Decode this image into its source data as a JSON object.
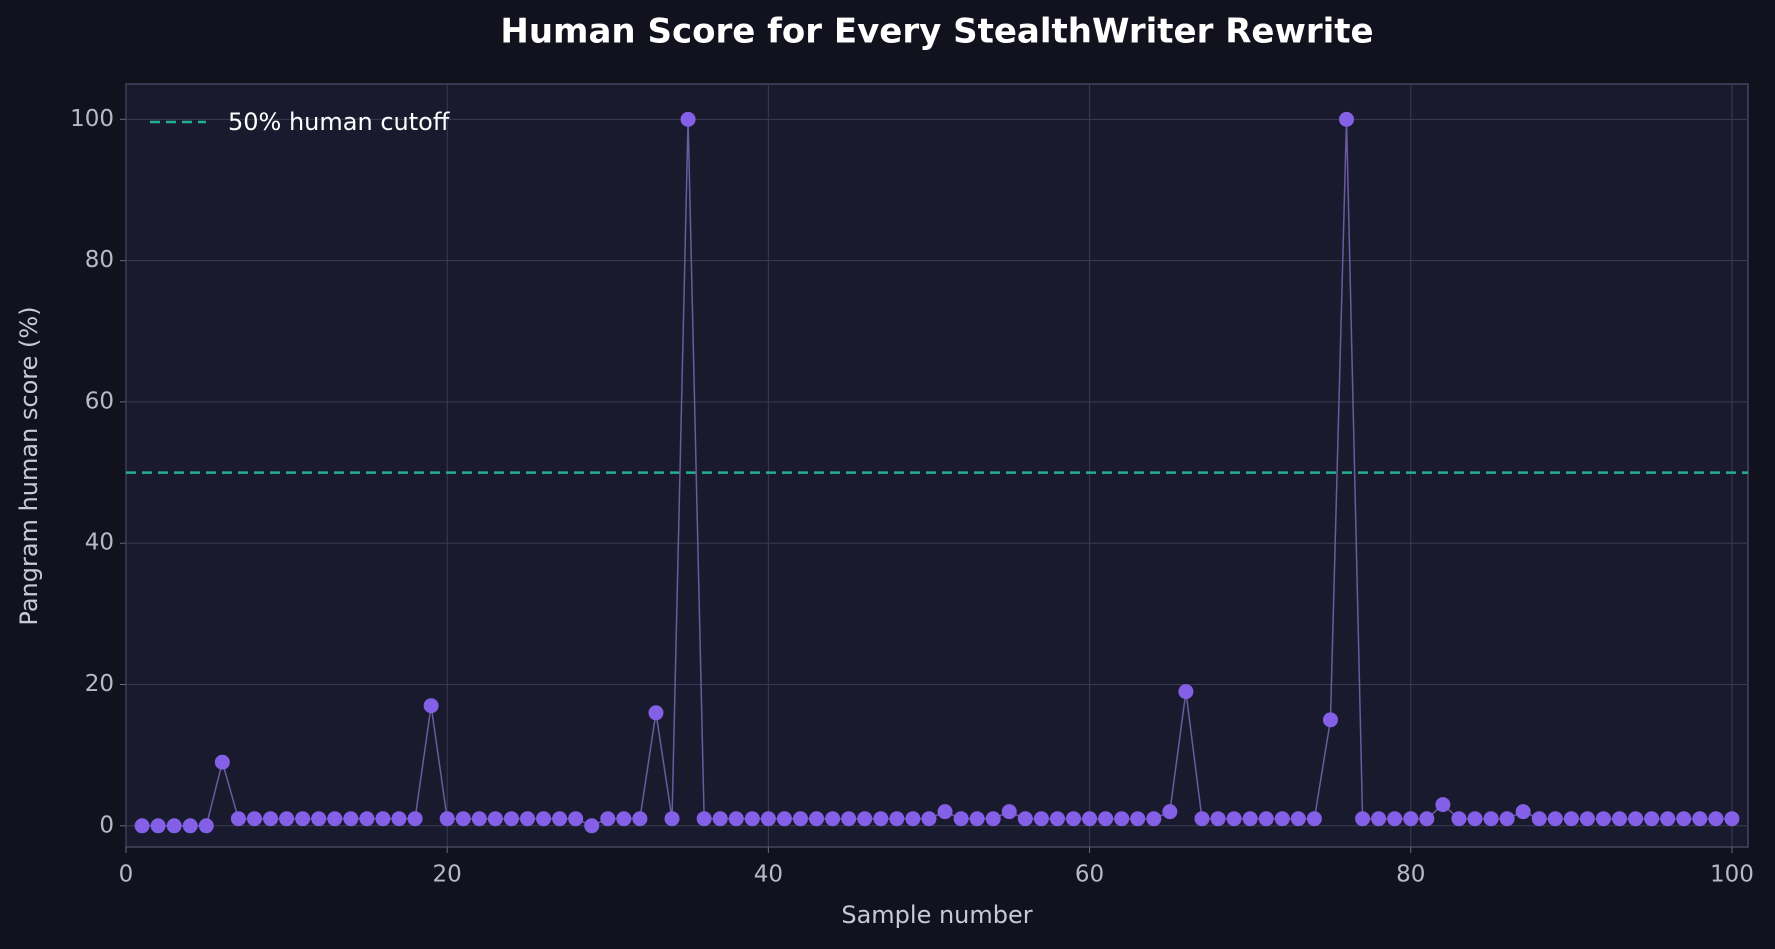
{
  "chart_data": {
    "type": "line",
    "title": "Human Score for Every StealthWriter Rewrite",
    "x_label": "Sample number",
    "y_label": "Pangram human score (%)",
    "x": [
      1,
      2,
      3,
      4,
      5,
      6,
      7,
      8,
      9,
      10,
      11,
      12,
      13,
      14,
      15,
      16,
      17,
      18,
      19,
      20,
      21,
      22,
      23,
      24,
      25,
      26,
      27,
      28,
      29,
      30,
      31,
      32,
      33,
      34,
      35,
      36,
      37,
      38,
      39,
      40,
      41,
      42,
      43,
      44,
      45,
      46,
      47,
      48,
      49,
      50,
      51,
      52,
      53,
      54,
      55,
      56,
      57,
      58,
      59,
      60,
      61,
      62,
      63,
      64,
      65,
      66,
      67,
      68,
      69,
      70,
      71,
      72,
      73,
      74,
      75,
      76,
      77,
      78,
      79,
      80,
      81,
      82,
      83,
      84,
      85,
      86,
      87,
      88,
      89,
      90,
      91,
      92,
      93,
      94,
      95,
      96,
      97,
      98,
      99,
      100
    ],
    "series": [
      {
        "color": "#8360e6",
        "line_color": "#6a5a9e",
        "values": [
          0,
          0,
          0,
          0,
          0,
          9,
          1,
          1,
          1,
          1,
          1,
          1,
          1,
          1,
          1,
          1,
          1,
          1,
          17,
          1,
          1,
          1,
          1,
          1,
          1,
          1,
          1,
          1,
          0,
          1,
          1,
          1,
          16,
          1,
          100,
          1,
          1,
          1,
          1,
          1,
          1,
          1,
          1,
          1,
          1,
          1,
          1,
          1,
          1,
          1,
          2,
          1,
          1,
          1,
          2,
          1,
          1,
          1,
          1,
          1,
          1,
          1,
          1,
          1,
          2,
          19,
          1,
          1,
          1,
          1,
          1,
          1,
          1,
          1,
          15,
          100,
          1,
          1,
          1,
          1,
          1,
          3,
          1,
          1,
          1,
          1,
          2,
          1,
          1,
          1,
          1,
          1,
          1,
          1,
          1,
          1,
          1,
          1,
          1,
          1
        ]
      }
    ],
    "threshold": {
      "value": 50,
      "name": "50% human cutoff",
      "color": "#22b08e"
    },
    "xlim": [
      0,
      101
    ],
    "ylim": [
      -3,
      105
    ],
    "xticks": [
      0,
      20,
      40,
      60,
      80,
      100
    ],
    "yticks": [
      0,
      20,
      40,
      60,
      80,
      100
    ],
    "grid": true,
    "legend": "upper left"
  }
}
